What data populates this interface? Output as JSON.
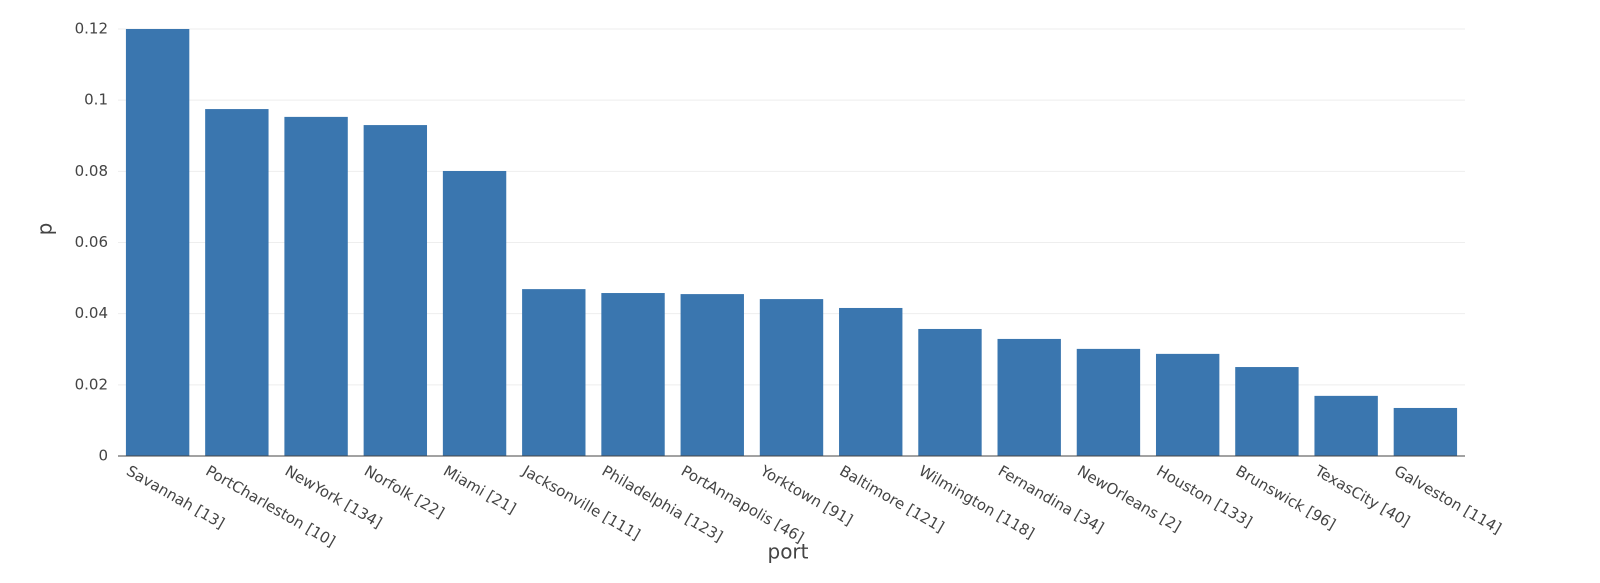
{
  "chart_data": {
    "type": "bar",
    "x_label": "port",
    "y_label": "p",
    "categories": [
      "Savannah [13]",
      "PortCharleston [10]",
      "NewYork [134]",
      "Norfolk [22]",
      "Miami [21]",
      "Jacksonville [111]",
      "Philadelphia [123]",
      "PortAnnapolis [46]",
      "Yorktown [91]",
      "Baltimore [121]",
      "Wilmington [118]",
      "Fernandina [34]",
      "NewOrleans [2]",
      "Houston [133]",
      "Brunswick [96]",
      "TexasCity [40]",
      "Galveston [114]"
    ],
    "values": [
      0.12,
      0.0975,
      0.0953,
      0.093,
      0.0801,
      0.0469,
      0.0458,
      0.0455,
      0.0441,
      0.0416,
      0.0357,
      0.0329,
      0.0301,
      0.0287,
      0.025,
      0.0169,
      0.0135
    ],
    "color": "#3a76af",
    "ylim": [
      0,
      0.12
    ],
    "yticks": [
      0,
      0.02,
      0.04,
      0.06,
      0.08,
      0.1,
      0.12
    ],
    "grid": true
  }
}
